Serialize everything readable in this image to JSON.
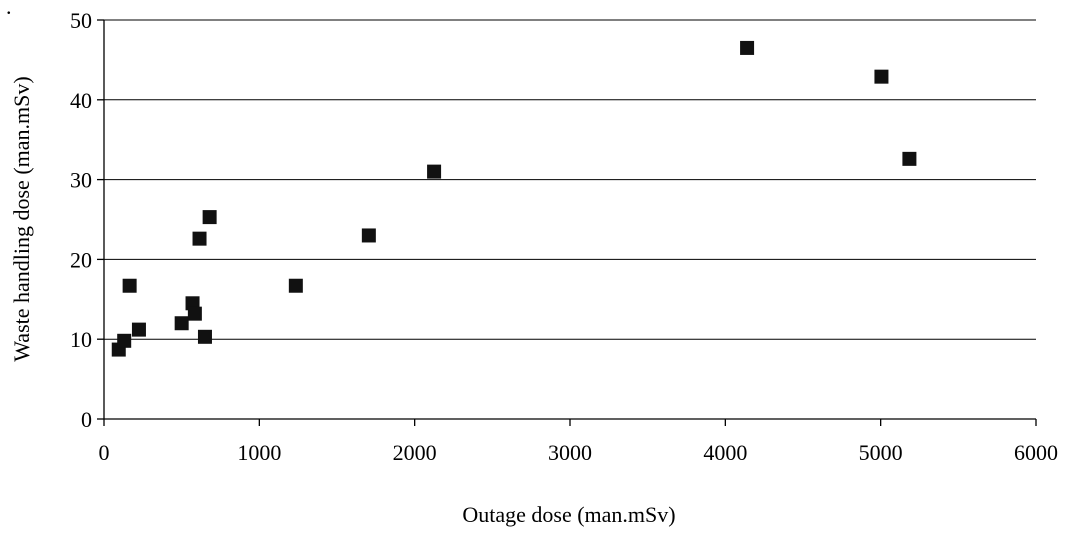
{
  "chart_data": {
    "type": "scatter",
    "title": "",
    "xlabel": "Outage dose (man.mSv)",
    "ylabel": "Waste handling dose (man.mSv)",
    "corner_mark": ".",
    "xlim": [
      0,
      6000
    ],
    "ylim": [
      0,
      50
    ],
    "x_ticks": [
      0,
      1000,
      2000,
      3000,
      4000,
      5000,
      6000
    ],
    "y_ticks": [
      0,
      10,
      20,
      30,
      40,
      50
    ],
    "grid": "horizontal",
    "legend": "none",
    "marker": "square",
    "marker_color": "#111111",
    "points": [
      {
        "x": 95,
        "y": 8.7
      },
      {
        "x": 130,
        "y": 9.8
      },
      {
        "x": 165,
        "y": 16.7
      },
      {
        "x": 225,
        "y": 11.2
      },
      {
        "x": 500,
        "y": 12.0
      },
      {
        "x": 570,
        "y": 14.5
      },
      {
        "x": 585,
        "y": 13.2
      },
      {
        "x": 615,
        "y": 22.6
      },
      {
        "x": 650,
        "y": 10.3
      },
      {
        "x": 680,
        "y": 25.3
      },
      {
        "x": 1235,
        "y": 16.7
      },
      {
        "x": 1705,
        "y": 23.0
      },
      {
        "x": 2125,
        "y": 31.0
      },
      {
        "x": 4140,
        "y": 46.5
      },
      {
        "x": 5005,
        "y": 42.9
      },
      {
        "x": 5185,
        "y": 32.6
      }
    ]
  }
}
